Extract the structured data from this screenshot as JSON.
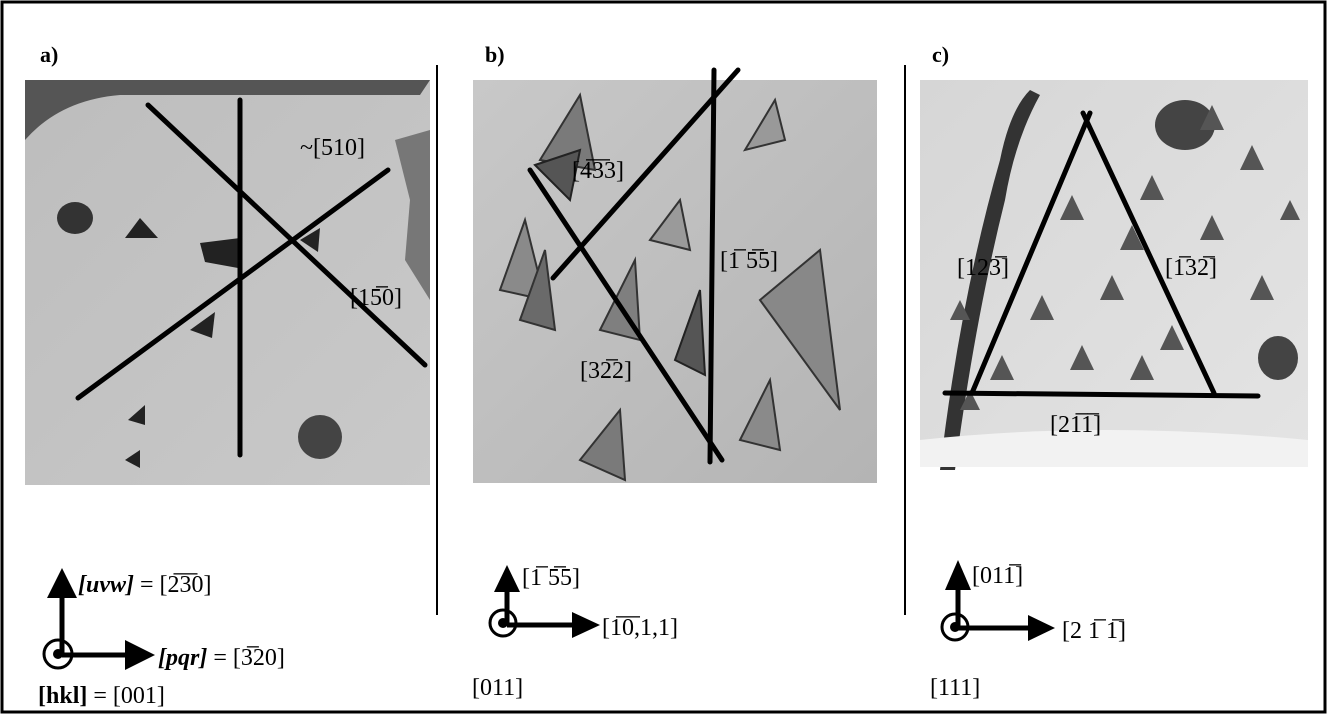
{
  "panels": [
    {
      "label": "a)",
      "annotations": [
        "~[510]",
        "[15̅0]"
      ],
      "axes": {
        "up_key": "[uvw]",
        "up_value": "= [2̅3̅0]",
        "right_key": "[pqr]",
        "right_value": "= [3̅20]",
        "normal_key": "[hkl]",
        "normal_value": "= [001]"
      }
    },
    {
      "label": "b)",
      "annotations": [
        "[4̅3̅3]",
        "[1̅ 5̅5]",
        "[32̅2]"
      ],
      "axes": {
        "up": "[1̅ 5̅5]",
        "right": "[1̅0̅,1,1]",
        "normal": "[011]"
      }
    },
    {
      "label": "c)",
      "annotations": [
        "[123̅]",
        "[1̅32̅]",
        "[21̅1̅]"
      ],
      "axes": {
        "up": "[011̅]",
        "right": "[2 1̅ 1̅]",
        "normal": "[111]"
      }
    }
  ]
}
